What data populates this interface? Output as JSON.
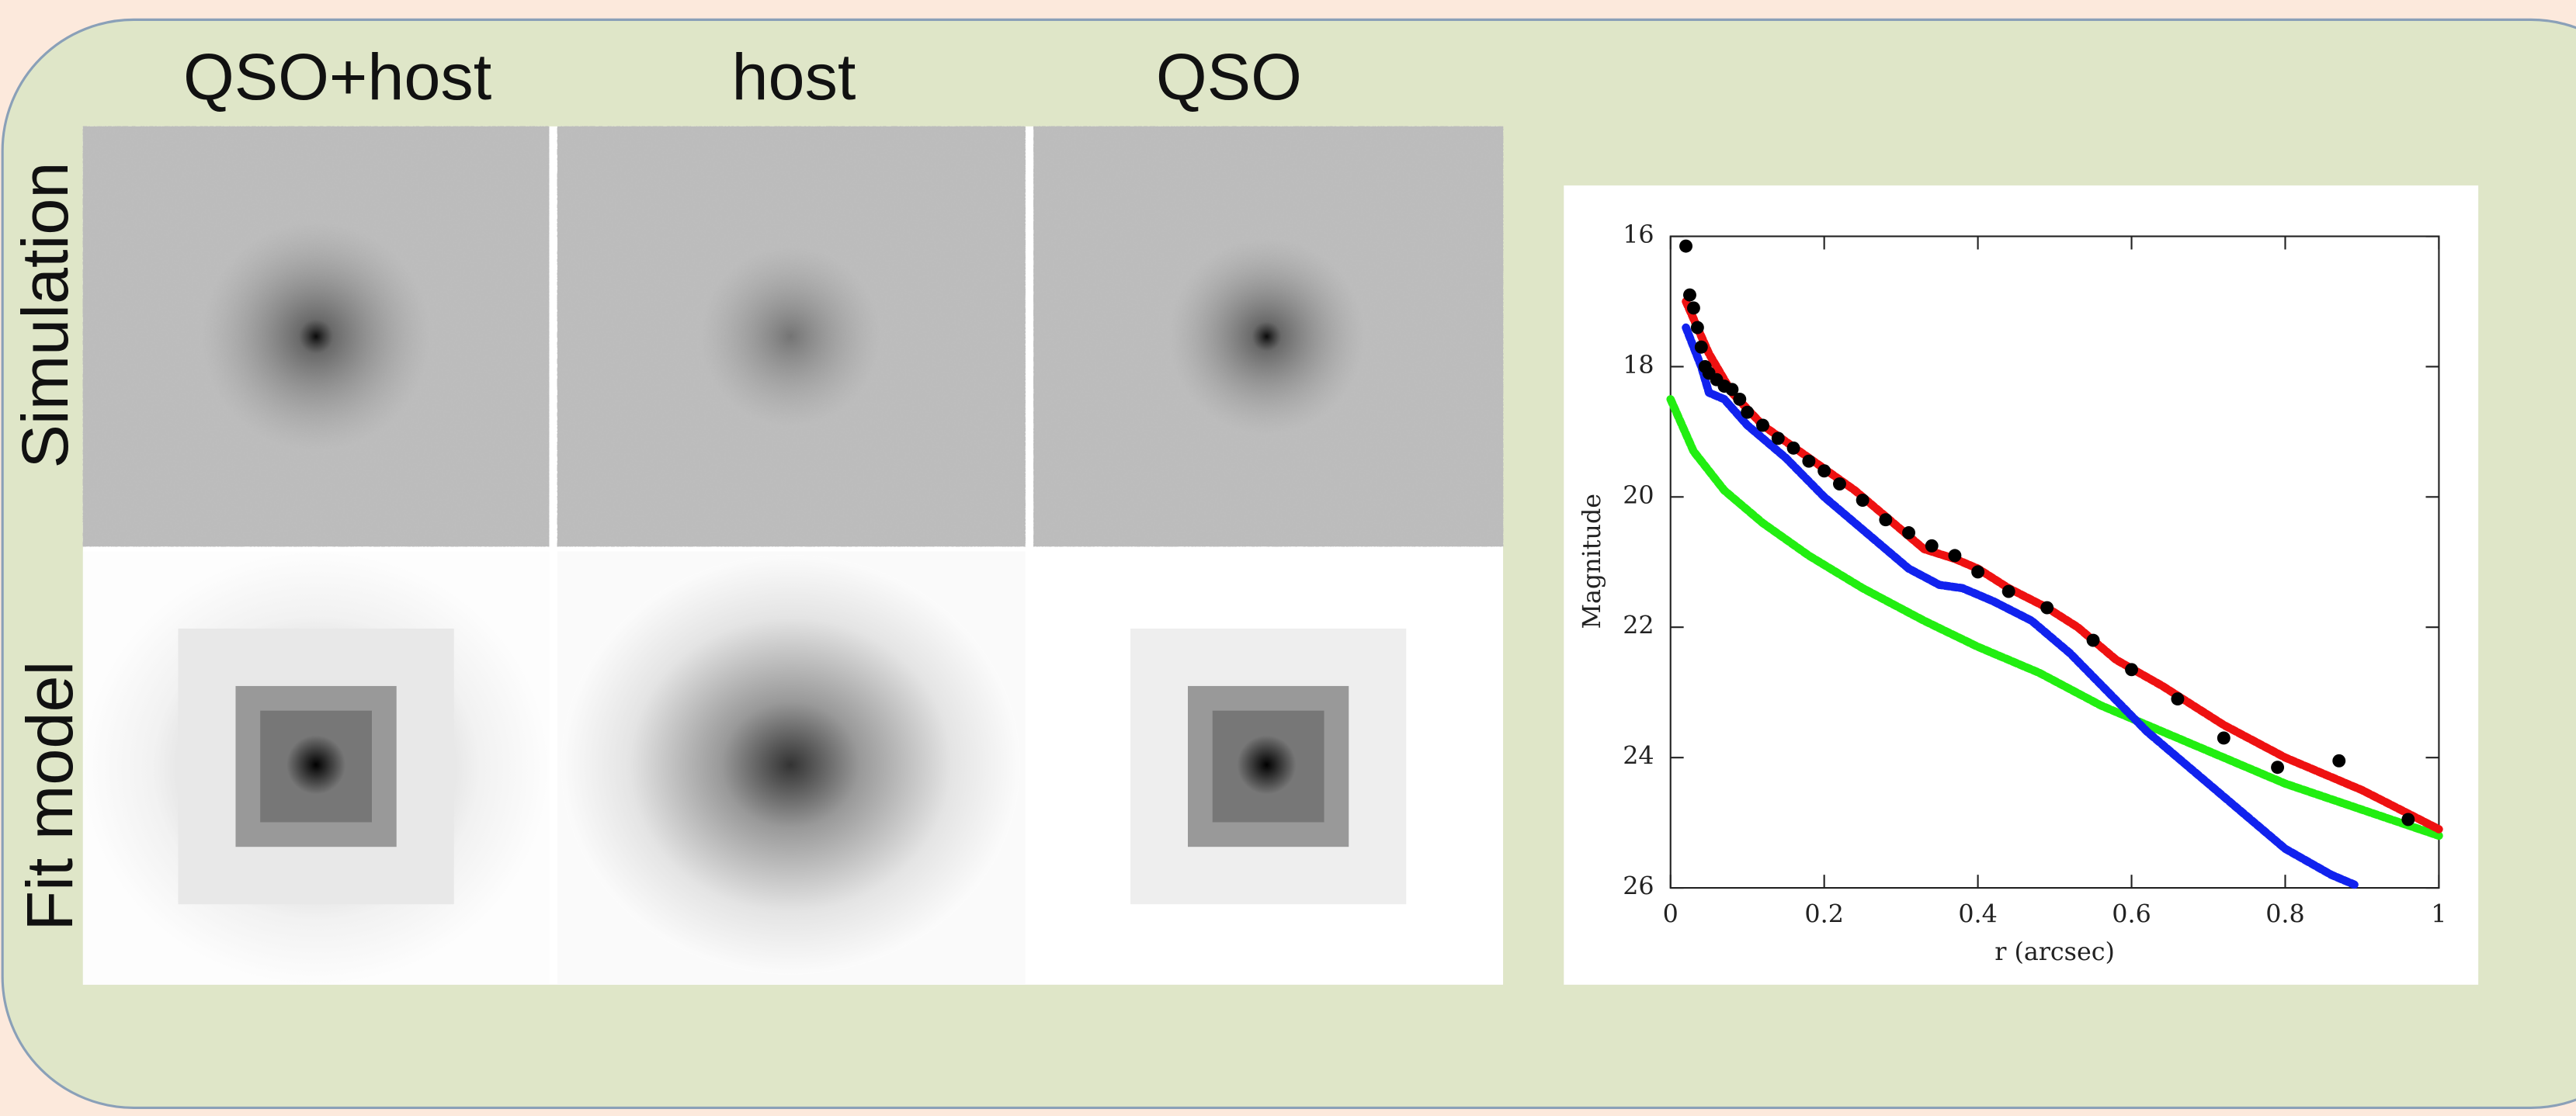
{
  "panels": {
    "columns": [
      "QSO+host",
      "host",
      "QSO"
    ],
    "rows": [
      "Simulation",
      "Fit model"
    ]
  },
  "chart_data": {
    "type": "line",
    "xlabel": "r (arcsec)",
    "ylabel": "Magnitude",
    "xlim": [
      0,
      1
    ],
    "ylim": [
      16,
      26
    ],
    "y_inverted": true,
    "xticks": [
      0,
      0.2,
      0.4,
      0.6,
      0.8,
      1
    ],
    "yticks": [
      16,
      18,
      20,
      22,
      24,
      26
    ],
    "series": [
      {
        "color": "#ee1111",
        "x": [
          0.02,
          0.05,
          0.08,
          0.12,
          0.18,
          0.24,
          0.29,
          0.33,
          0.37,
          0.4,
          0.44,
          0.49,
          0.53,
          0.58,
          0.64,
          0.72,
          0.8,
          0.9,
          1.0
        ],
        "values": [
          17.0,
          17.8,
          18.4,
          18.9,
          19.4,
          19.9,
          20.4,
          20.8,
          20.95,
          21.1,
          21.4,
          21.7,
          22.0,
          22.5,
          22.9,
          23.5,
          24.0,
          24.5,
          25.1
        ]
      },
      {
        "color": "#1122ee",
        "x": [
          0.02,
          0.04,
          0.05,
          0.07,
          0.1,
          0.15,
          0.2,
          0.26,
          0.31,
          0.35,
          0.38,
          0.42,
          0.47,
          0.52,
          0.57,
          0.62,
          0.68,
          0.75,
          0.8,
          0.86,
          0.89
        ],
        "values": [
          17.4,
          18.0,
          18.4,
          18.5,
          18.9,
          19.4,
          20.0,
          20.6,
          21.1,
          21.35,
          21.4,
          21.6,
          21.9,
          22.4,
          23.0,
          23.6,
          24.2,
          24.9,
          25.4,
          25.8,
          25.95
        ]
      },
      {
        "color": "#22ee11",
        "x": [
          0,
          0.03,
          0.07,
          0.12,
          0.18,
          0.25,
          0.33,
          0.4,
          0.48,
          0.56,
          0.64,
          0.72,
          0.8,
          0.9,
          1.0
        ],
        "values": [
          18.5,
          19.3,
          19.9,
          20.4,
          20.9,
          21.4,
          21.9,
          22.3,
          22.7,
          23.2,
          23.6,
          24.0,
          24.4,
          24.8,
          25.2
        ]
      },
      {
        "color": "#000000",
        "markers": true,
        "x": [
          0.02,
          0.025,
          0.03,
          0.035,
          0.04,
          0.045,
          0.05,
          0.06,
          0.07,
          0.08,
          0.09,
          0.1,
          0.12,
          0.14,
          0.16,
          0.18,
          0.2,
          0.22,
          0.25,
          0.28,
          0.31,
          0.34,
          0.37,
          0.4,
          0.44,
          0.49,
          0.55,
          0.6,
          0.66,
          0.72,
          0.79,
          0.87,
          0.96
        ],
        "values": [
          16.15,
          16.9,
          17.1,
          17.4,
          17.7,
          18.0,
          18.1,
          18.2,
          18.3,
          18.35,
          18.5,
          18.7,
          18.9,
          19.1,
          19.25,
          19.45,
          19.6,
          19.8,
          20.05,
          20.35,
          20.55,
          20.75,
          20.9,
          21.15,
          21.45,
          21.7,
          22.2,
          22.65,
          23.1,
          23.7,
          24.15,
          24.05,
          24.95
        ]
      }
    ]
  }
}
